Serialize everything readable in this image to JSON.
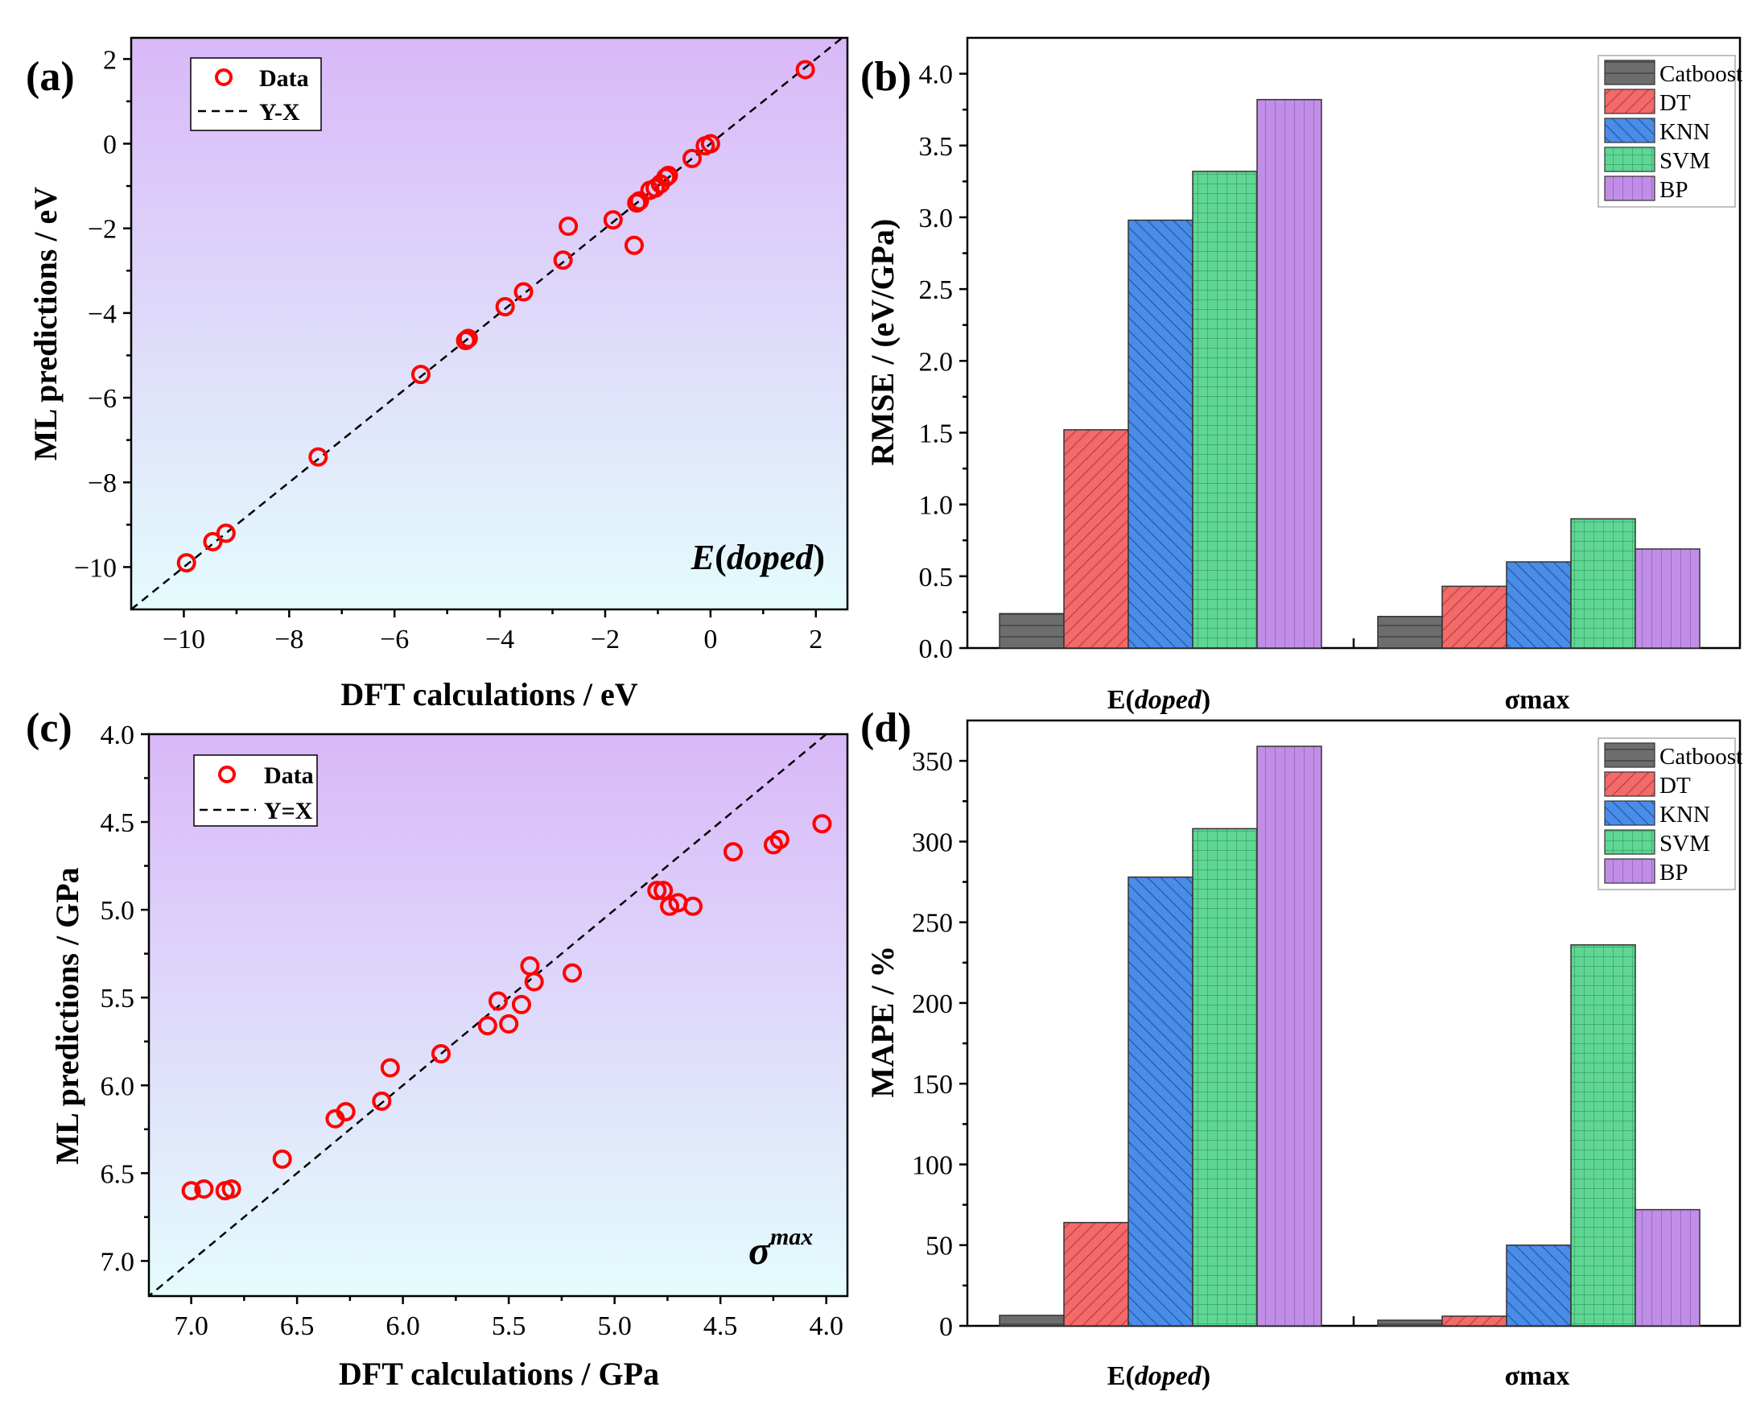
{
  "chart_data": [
    {
      "type": "scatter",
      "panel": "(a)",
      "xlabel": "DFT calculations / eV",
      "ylabel": "ML predictions / eV",
      "xlim": [
        -11,
        2.6
      ],
      "ylim": [
        -11,
        2.5
      ],
      "xticks": [
        -10,
        -8,
        -6,
        -4,
        -2,
        0,
        2
      ],
      "xtick_labels": [
        "−10",
        "−8",
        "−6",
        "−4",
        "−2",
        "0",
        "2"
      ],
      "yticks": [
        -10,
        -8,
        -6,
        -4,
        -2,
        0,
        2
      ],
      "ytick_labels": [
        "−10",
        "−8",
        "−6",
        "−4",
        "−2",
        "0",
        "2"
      ],
      "annotation": "E(doped)",
      "annotation_parts": {
        "main": "E",
        "paren_open": "(",
        "italic": "doped",
        "paren_close": ")"
      },
      "legend": {
        "position": "top-left",
        "data_label": "Data",
        "line_label": "Y-X"
      },
      "series": [
        {
          "name": "Data",
          "points": [
            [
              -9.95,
              -9.9
            ],
            [
              -9.45,
              -9.4
            ],
            [
              -9.2,
              -9.2
            ],
            [
              -7.45,
              -7.4
            ],
            [
              -5.5,
              -5.45
            ],
            [
              -4.65,
              -4.65
            ],
            [
              -4.6,
              -4.6
            ],
            [
              -3.9,
              -3.85
            ],
            [
              -3.55,
              -3.5
            ],
            [
              -2.8,
              -2.75
            ],
            [
              -2.7,
              -1.95
            ],
            [
              -1.85,
              -1.8
            ],
            [
              -1.45,
              -2.4
            ],
            [
              -1.4,
              -1.4
            ],
            [
              -1.35,
              -1.35
            ],
            [
              -1.15,
              -1.1
            ],
            [
              -1.05,
              -1.05
            ],
            [
              -0.95,
              -0.95
            ],
            [
              -0.85,
              -0.8
            ],
            [
              -0.8,
              -0.75
            ],
            [
              -0.35,
              -0.35
            ],
            [
              -0.1,
              -0.05
            ],
            [
              0.0,
              0.0
            ],
            [
              1.8,
              1.75
            ]
          ]
        }
      ]
    },
    {
      "type": "bar",
      "panel": "(b)",
      "categories": [
        "E(doped)",
        "σmax"
      ],
      "ylabel": "RMSE / (eV/GPa)",
      "ylim": [
        0,
        4.25
      ],
      "yticks": [
        0.0,
        0.5,
        1.0,
        1.5,
        2.0,
        2.5,
        3.0,
        3.5,
        4.0
      ],
      "ytick_labels": [
        "0.0",
        "0.5",
        "1.0",
        "1.5",
        "2.0",
        "2.5",
        "3.0",
        "3.5",
        "4.0"
      ],
      "legend_position": "top-right",
      "series": [
        {
          "name": "Catboost",
          "values": [
            0.24,
            0.22
          ]
        },
        {
          "name": "DT",
          "values": [
            1.52,
            0.43
          ]
        },
        {
          "name": "KNN",
          "values": [
            2.98,
            0.6
          ]
        },
        {
          "name": "SVM",
          "values": [
            3.32,
            0.9
          ]
        },
        {
          "name": "BP",
          "values": [
            3.82,
            0.69
          ]
        }
      ]
    },
    {
      "type": "scatter",
      "panel": "(c)",
      "xlabel": "DFT calculations / GPa",
      "ylabel": "ML predictions / GPa",
      "xlim": [
        7.2,
        3.9
      ],
      "ylim": [
        7.2,
        4.0
      ],
      "xticks": [
        7.0,
        6.5,
        6.0,
        5.5,
        5.0,
        4.5,
        4.0
      ],
      "xtick_labels": [
        "7.0",
        "6.5",
        "6.0",
        "5.5",
        "5.0",
        "4.5",
        "4.0"
      ],
      "yticks": [
        4.0,
        4.5,
        5.0,
        5.5,
        6.0,
        6.5,
        7.0
      ],
      "ytick_labels": [
        "4.0",
        "4.5",
        "5.0",
        "5.5",
        "6.0",
        "6.5",
        "7.0"
      ],
      "annotation": "σmax",
      "annotation_parts": {
        "main": "σ",
        "sup": "max"
      },
      "legend": {
        "position": "top-left",
        "data_label": "Data",
        "line_label": "Y=X"
      },
      "series": [
        {
          "name": "Data",
          "points": [
            [
              7.0,
              6.6
            ],
            [
              6.94,
              6.59
            ],
            [
              6.84,
              6.6
            ],
            [
              6.81,
              6.59
            ],
            [
              6.57,
              6.42
            ],
            [
              6.32,
              6.19
            ],
            [
              6.27,
              6.15
            ],
            [
              6.1,
              6.09
            ],
            [
              6.06,
              5.9
            ],
            [
              5.82,
              5.82
            ],
            [
              5.6,
              5.66
            ],
            [
              5.55,
              5.52
            ],
            [
              5.5,
              5.65
            ],
            [
              5.44,
              5.54
            ],
            [
              5.4,
              5.32
            ],
            [
              5.38,
              5.41
            ],
            [
              5.2,
              5.36
            ],
            [
              4.8,
              4.89
            ],
            [
              4.77,
              4.89
            ],
            [
              4.74,
              4.98
            ],
            [
              4.7,
              4.96
            ],
            [
              4.63,
              4.98
            ],
            [
              4.44,
              4.67
            ],
            [
              4.25,
              4.63
            ],
            [
              4.22,
              4.6
            ],
            [
              4.02,
              4.51
            ]
          ]
        }
      ]
    },
    {
      "type": "bar",
      "panel": "(d)",
      "categories": [
        "E(doped)",
        "σmax"
      ],
      "ylabel": "MAPE / %",
      "ylim": [
        0,
        375
      ],
      "yticks": [
        0,
        50,
        100,
        150,
        200,
        250,
        300,
        350
      ],
      "ytick_labels": [
        "0",
        "50",
        "100",
        "150",
        "200",
        "250",
        "300",
        "350"
      ],
      "legend_position": "top-right",
      "series": [
        {
          "name": "Catboost",
          "values": [
            6.5,
            3.5
          ]
        },
        {
          "name": "DT",
          "values": [
            64,
            6
          ]
        },
        {
          "name": "KNN",
          "values": [
            278,
            50
          ]
        },
        {
          "name": "SVM",
          "values": [
            308,
            236
          ]
        },
        {
          "name": "BP",
          "values": [
            359,
            72
          ]
        }
      ]
    }
  ],
  "category_label_parts": [
    {
      "main": "E",
      "paren_open": "(",
      "italic": "doped",
      "paren_close": ")"
    },
    {
      "main": "σmax"
    }
  ],
  "colors": {
    "Catboost": "#6d6d6d",
    "DT": "#f26a6a",
    "KNN": "#4a8de8",
    "SVM": "#5fd693",
    "BP": "#c08ee6",
    "marker": "#ff0000",
    "gradient_top": "#d9b8f8",
    "gradient_bottom": "#e4fcfc"
  },
  "icons": {
    "marker": "open-circle-icon",
    "reference_line": "dashed-line-icon"
  }
}
